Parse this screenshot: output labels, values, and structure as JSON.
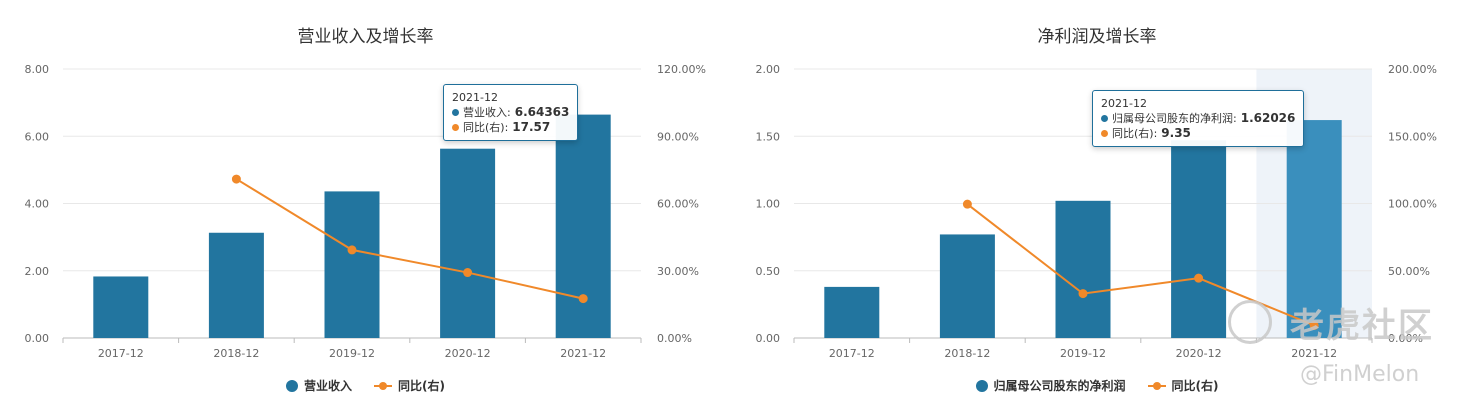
{
  "chart_data": [
    {
      "type": "bar",
      "title": "营业收入及增长率",
      "categories": [
        "2017-12",
        "2018-12",
        "2019-12",
        "2020-12",
        "2021-12"
      ],
      "series": [
        {
          "name": "营业收入",
          "type": "bar",
          "axis": "left",
          "values": [
            1.83,
            3.13,
            4.36,
            5.63,
            6.64363
          ]
        },
        {
          "name": "同比(右)",
          "type": "line",
          "axis": "right",
          "values": [
            null,
            70.9,
            39.3,
            29.2,
            17.57
          ]
        }
      ],
      "left_axis": {
        "ylim": [
          0,
          8
        ],
        "ticks": [
          "0.00",
          "2.00",
          "4.00",
          "6.00",
          "8.00"
        ]
      },
      "right_axis": {
        "ylim": [
          0,
          120
        ],
        "ticks": [
          "0.00%",
          "30.00%",
          "60.00%",
          "90.00%",
          "120.00%"
        ]
      },
      "grid": true,
      "legend": "bottom-center",
      "highlight_index": null,
      "tooltip": {
        "category": "2021-12",
        "rows": [
          {
            "label": "营业收入:",
            "value": "6.64363"
          },
          {
            "label": "同比(右):",
            "value": "17.57"
          }
        ]
      }
    },
    {
      "type": "bar",
      "title": "净利润及增长率",
      "categories": [
        "2017-12",
        "2018-12",
        "2019-12",
        "2020-12",
        "2021-12"
      ],
      "series": [
        {
          "name": "归属母公司股东的净利润",
          "type": "bar",
          "axis": "left",
          "values": [
            0.38,
            0.77,
            1.02,
            1.47,
            1.62026
          ]
        },
        {
          "name": "同比(右)",
          "type": "line",
          "axis": "right",
          "values": [
            null,
            99.5,
            33.0,
            44.5,
            9.35
          ]
        }
      ],
      "left_axis": {
        "ylim": [
          0,
          2
        ],
        "ticks": [
          "0.00",
          "0.50",
          "1.00",
          "1.50",
          "2.00"
        ]
      },
      "right_axis": {
        "ylim": [
          0,
          200
        ],
        "ticks": [
          "0.00%",
          "50.00%",
          "100.00%",
          "150.00%",
          "200.00%"
        ]
      },
      "grid": true,
      "legend": "bottom-center",
      "highlight_index": 4,
      "tooltip": {
        "category": "2021-12",
        "rows": [
          {
            "label": "归属母公司股东的净利润:",
            "value": "1.62026"
          },
          {
            "label": "同比(右):",
            "value": "9.35"
          }
        ]
      }
    }
  ],
  "colors": {
    "bar": "#22759f",
    "bar_highlight": "#3a8fbd",
    "line": "#f0892a",
    "highlight_band": "#eef3f9",
    "grid": "#e8e8e8",
    "axis_text": "#666666"
  },
  "watermark": {
    "logo_text": "老虎社区",
    "handle_text": "@FinMelon"
  }
}
